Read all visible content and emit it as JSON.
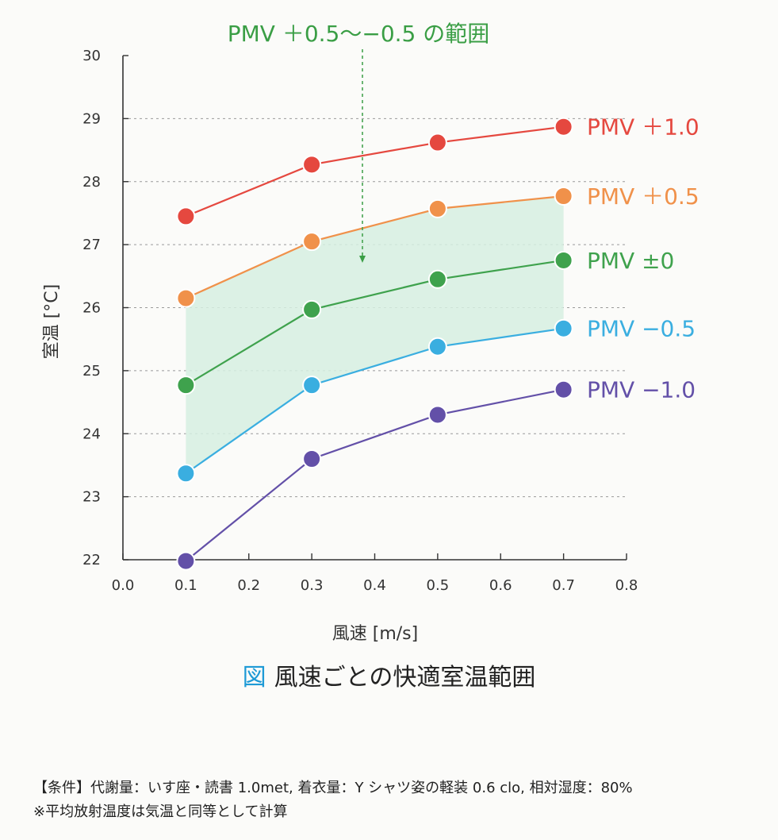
{
  "chart_data": {
    "type": "line",
    "title": "風速ごとの快適室温範囲",
    "figure_mark": "図",
    "xlabel": "風速 [m/s]",
    "ylabel": "室温 [°C]",
    "xlim": [
      0.0,
      0.8
    ],
    "ylim": [
      22,
      30
    ],
    "xticks": [
      "0.0",
      "0.1",
      "0.2",
      "0.3",
      "0.4",
      "0.5",
      "0.6",
      "0.7",
      "0.8"
    ],
    "yticks": [
      "22",
      "23",
      "24",
      "25",
      "26",
      "27",
      "28",
      "29",
      "30"
    ],
    "grid": "horizontal-dashed",
    "x": [
      0.1,
      0.3,
      0.5,
      0.7
    ],
    "series": [
      {
        "name": "PMV ＋1.0",
        "color": "#e5483f",
        "values": [
          27.45,
          28.27,
          28.62,
          28.87
        ]
      },
      {
        "name": "PMV ＋0.5",
        "color": "#f0914a",
        "values": [
          26.15,
          27.05,
          27.57,
          27.77
        ]
      },
      {
        "name": "PMV ±0",
        "color": "#3fa24d",
        "values": [
          24.77,
          25.97,
          26.45,
          26.75
        ]
      },
      {
        "name": "PMV −0.5",
        "color": "#3aaee0",
        "values": [
          23.37,
          24.77,
          25.38,
          25.67
        ]
      },
      {
        "name": "PMV −1.0",
        "color": "#6350a8",
        "values": [
          21.98,
          23.6,
          24.3,
          24.7
        ]
      }
    ],
    "shaded_range": {
      "label": "PMV ＋0.5〜−0.5 の範囲",
      "label_color": "#3a9e45",
      "fill_color": "#d6eee2",
      "upper_series": "PMV ＋0.5",
      "lower_series": "PMV −0.5"
    }
  },
  "notes": [
    "【条件】代謝量：いす座・読書 1.0met,  着衣量：Y シャツ姿の軽装 0.6 clo,  相対湿度：80%",
    "※平均放射温度は気温と同等として計算"
  ]
}
